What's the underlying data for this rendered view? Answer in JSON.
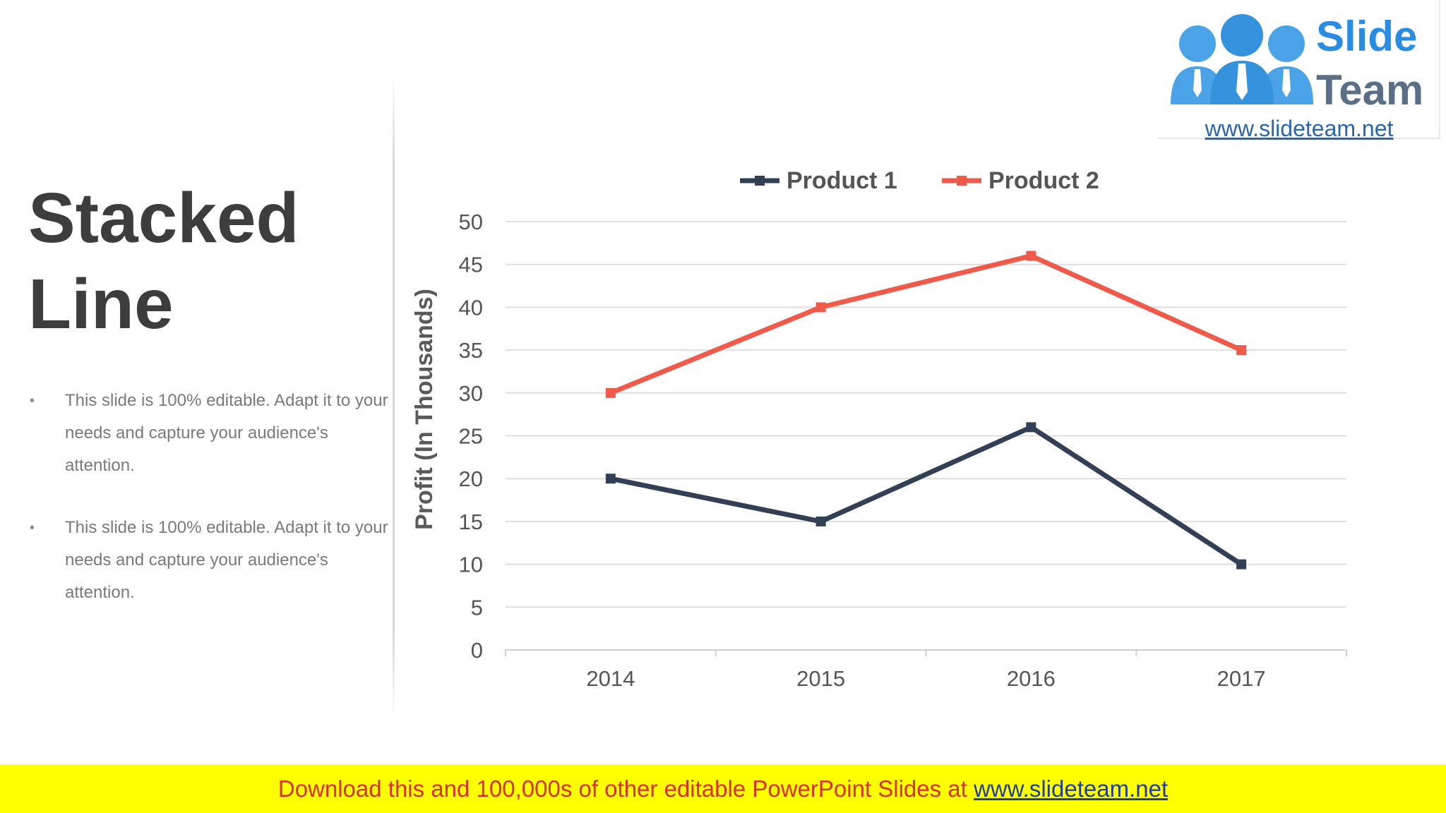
{
  "slide": {
    "title_line1": "Stacked",
    "title_line2": "Line",
    "bullets": [
      "This slide is 100% editable. Adapt it to your needs and capture your audience's attention.",
      "This slide is 100% editable. Adapt it to your needs and capture your audience's attention."
    ],
    "bullet_marker": "•"
  },
  "logo": {
    "word1": "Slide",
    "word2": "Team",
    "url": "www.slideteam.net",
    "icon": "people-group-icon"
  },
  "banner": {
    "text": "Download this and 100,000s of other editable PowerPoint Slides at",
    "link": "www.slideteam.net",
    "background": "#ffff00",
    "text_color": "#d9302c",
    "link_color": "#1f3d9c"
  },
  "chart_data": {
    "type": "line",
    "title": "",
    "xlabel": "",
    "ylabel": "Profit (In Thousands)",
    "categories": [
      "2014",
      "2015",
      "2016",
      "2017"
    ],
    "ylim": [
      0,
      50
    ],
    "yticks": [
      0,
      5,
      10,
      15,
      20,
      25,
      30,
      35,
      40,
      45,
      50
    ],
    "grid": true,
    "legend_position": "top",
    "series": [
      {
        "name": "Product 1",
        "values": [
          20,
          15,
          26,
          10
        ],
        "color": "#323f55"
      },
      {
        "name": "Product 2",
        "values": [
          30,
          40,
          46,
          35
        ],
        "color": "#f05a4a"
      }
    ]
  }
}
